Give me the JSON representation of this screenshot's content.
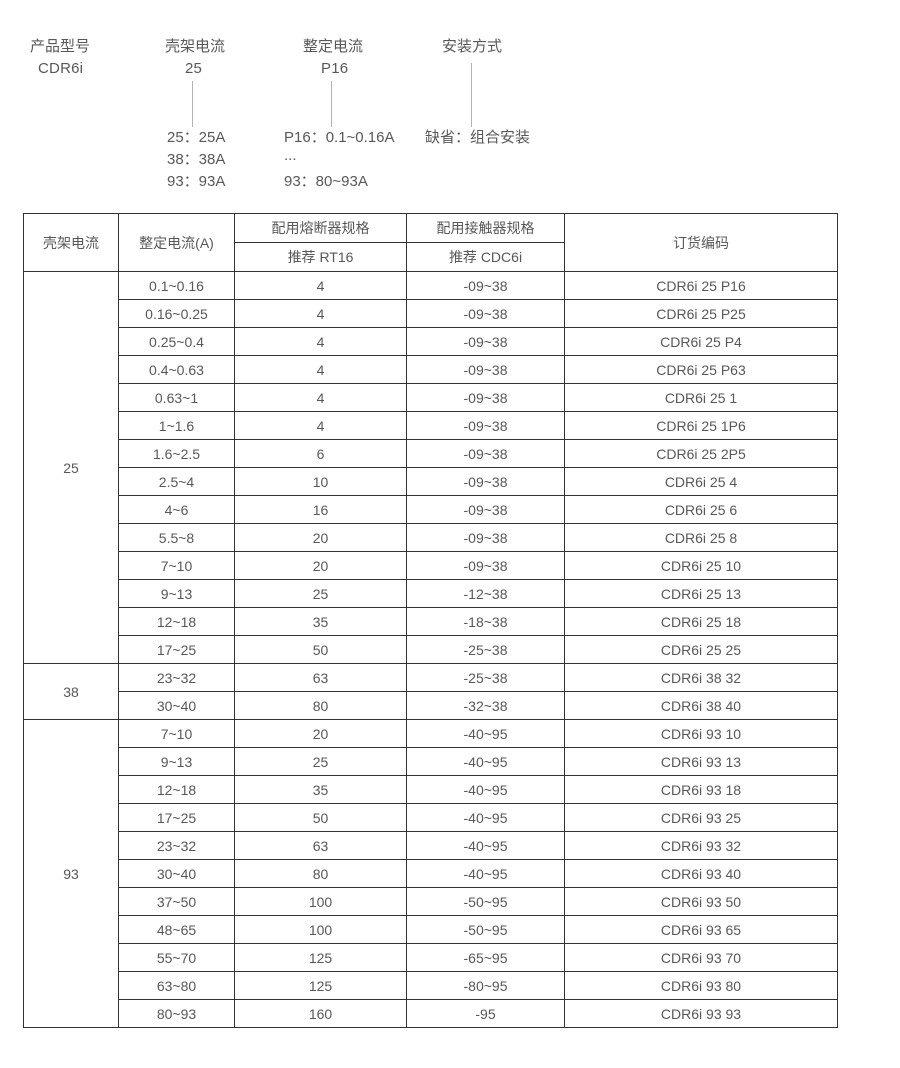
{
  "page": {
    "background": "#ffffff",
    "text_color": "#58585a",
    "border_color": "#333333",
    "connector_line_color": "#b3b3b3"
  },
  "diagram": {
    "product_label": "产品型号",
    "product_value": "CDR6i",
    "frame_label": "壳架电流",
    "frame_value": "25",
    "frame_notes": [
      "25：25A",
      "38：38A",
      "93：93A"
    ],
    "setting_label": "整定电流",
    "setting_value": "P16",
    "setting_notes": [
      "P16：0.1~0.16A",
      "...",
      "93：80~93A"
    ],
    "mount_label": "安装方式",
    "mount_notes": [
      "缺省：组合安装"
    ]
  },
  "table": {
    "header": {
      "frame_current": "壳架电流",
      "setting_current": "整定电流(A)",
      "fuse_spec": "配用熔断器规格",
      "fuse_recommend": "推荐 RT16",
      "contactor_spec": "配用接触器规格",
      "contactor_recommend": "推荐 CDC6i",
      "order_code": "订货编码"
    },
    "groups": [
      {
        "frame_current": "25",
        "rows": [
          {
            "setting": "0.1~0.16",
            "fuse": "4",
            "contactor": "-09~38",
            "code": "CDR6i 25 P16"
          },
          {
            "setting": "0.16~0.25",
            "fuse": "4",
            "contactor": "-09~38",
            "code": "CDR6i 25 P25"
          },
          {
            "setting": "0.25~0.4",
            "fuse": "4",
            "contactor": "-09~38",
            "code": "CDR6i 25 P4"
          },
          {
            "setting": "0.4~0.63",
            "fuse": "4",
            "contactor": "-09~38",
            "code": "CDR6i 25 P63"
          },
          {
            "setting": "0.63~1",
            "fuse": "4",
            "contactor": "-09~38",
            "code": "CDR6i 25 1"
          },
          {
            "setting": "1~1.6",
            "fuse": "4",
            "contactor": "-09~38",
            "code": "CDR6i 25 1P6"
          },
          {
            "setting": "1.6~2.5",
            "fuse": "6",
            "contactor": "-09~38",
            "code": "CDR6i 25 2P5"
          },
          {
            "setting": "2.5~4",
            "fuse": "10",
            "contactor": "-09~38",
            "code": "CDR6i 25 4"
          },
          {
            "setting": "4~6",
            "fuse": "16",
            "contactor": "-09~38",
            "code": "CDR6i 25 6"
          },
          {
            "setting": "5.5~8",
            "fuse": "20",
            "contactor": "-09~38",
            "code": "CDR6i 25 8"
          },
          {
            "setting": "7~10",
            "fuse": "20",
            "contactor": "-09~38",
            "code": "CDR6i 25 10"
          },
          {
            "setting": "9~13",
            "fuse": "25",
            "contactor": "-12~38",
            "code": "CDR6i 25 13"
          },
          {
            "setting": "12~18",
            "fuse": "35",
            "contactor": "-18~38",
            "code": "CDR6i 25 18"
          },
          {
            "setting": "17~25",
            "fuse": "50",
            "contactor": "-25~38",
            "code": "CDR6i 25 25"
          }
        ]
      },
      {
        "frame_current": "38",
        "rows": [
          {
            "setting": "23~32",
            "fuse": "63",
            "contactor": "-25~38",
            "code": "CDR6i 38 32"
          },
          {
            "setting": "30~40",
            "fuse": "80",
            "contactor": "-32~38",
            "code": "CDR6i 38 40"
          }
        ]
      },
      {
        "frame_current": "93",
        "rows": [
          {
            "setting": "7~10",
            "fuse": "20",
            "contactor": "-40~95",
            "code": "CDR6i 93 10"
          },
          {
            "setting": "9~13",
            "fuse": "25",
            "contactor": "-40~95",
            "code": "CDR6i 93 13"
          },
          {
            "setting": "12~18",
            "fuse": "35",
            "contactor": "-40~95",
            "code": "CDR6i 93 18"
          },
          {
            "setting": "17~25",
            "fuse": "50",
            "contactor": "-40~95",
            "code": "CDR6i 93 25"
          },
          {
            "setting": "23~32",
            "fuse": "63",
            "contactor": "-40~95",
            "code": "CDR6i 93 32"
          },
          {
            "setting": "30~40",
            "fuse": "80",
            "contactor": "-40~95",
            "code": "CDR6i 93 40"
          },
          {
            "setting": "37~50",
            "fuse": "100",
            "contactor": "-50~95",
            "code": "CDR6i 93 50"
          },
          {
            "setting": "48~65",
            "fuse": "100",
            "contactor": "-50~95",
            "code": "CDR6i 93 65"
          },
          {
            "setting": "55~70",
            "fuse": "125",
            "contactor": "-65~95",
            "code": "CDR6i 93 70"
          },
          {
            "setting": "63~80",
            "fuse": "125",
            "contactor": "-80~95",
            "code": "CDR6i 93 80"
          },
          {
            "setting": "80~93",
            "fuse": "160",
            "contactor": "-95",
            "code": "CDR6i 93 93"
          }
        ]
      }
    ]
  }
}
